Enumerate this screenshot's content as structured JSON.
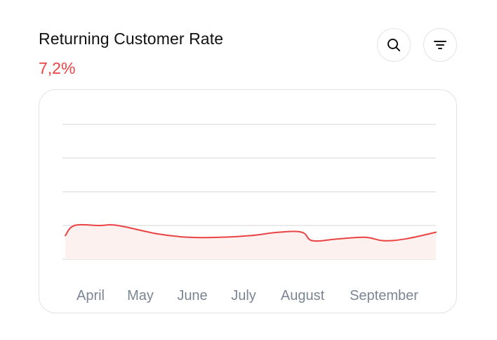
{
  "header": {
    "title": "Returning Customer Rate",
    "value": "7,2%"
  },
  "actions": {
    "search_icon": "search-icon",
    "filter_icon": "filter-icon"
  },
  "colors": {
    "accent": "#ea4343",
    "fill": "#fdf1f0",
    "grid": "#e4e4e4",
    "tick": "#7b8594"
  },
  "chart_data": {
    "type": "area",
    "categories": [
      "April",
      "May",
      "June",
      "July",
      "August",
      "September"
    ],
    "grid": true,
    "ylim": [
      0,
      10
    ],
    "series": [
      {
        "x": [
          0.0,
          0.15,
          0.55,
          0.85,
          1.5,
          2.0,
          2.5,
          3.0,
          3.45,
          3.83,
          4.0,
          4.4,
          4.85,
          5.15,
          5.5,
          6.0
        ],
        "values": [
          0.7,
          1.0,
          1.0,
          1.0,
          0.75,
          0.65,
          0.65,
          0.7,
          0.8,
          0.8,
          0.55,
          0.6,
          0.65,
          0.55,
          0.6,
          0.8
        ]
      }
    ]
  }
}
